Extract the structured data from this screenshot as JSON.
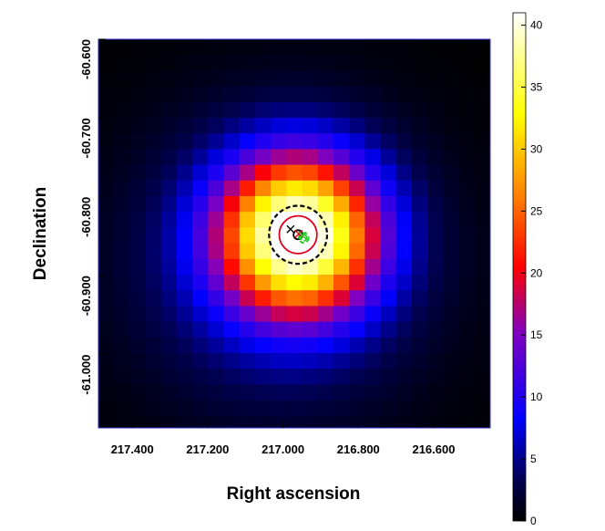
{
  "chart_data": {
    "type": "heatmap",
    "xlabel": "Right ascension",
    "ylabel": "Declination",
    "x_ticks": [
      "217.400",
      "217.200",
      "217.000",
      "216.800",
      "216.600"
    ],
    "x_tick_values": [
      217.4,
      217.2,
      217.0,
      216.8,
      216.6
    ],
    "y_ticks": [
      "-60.600",
      "-60.700",
      "-60.800",
      "-60.900",
      "-61.000"
    ],
    "y_tick_values": [
      -60.6,
      -60.7,
      -60.8,
      -60.9,
      -61.0
    ],
    "xlim": [
      217.49,
      216.45
    ],
    "ylim": [
      -61.093,
      -60.6
    ],
    "colorbar": {
      "ticks": [
        "0",
        "5",
        "10",
        "15",
        "20",
        "25",
        "30",
        "35",
        "40"
      ],
      "tick_values": [
        0,
        5,
        10,
        15,
        20,
        25,
        30,
        35,
        40
      ],
      "range": [
        0,
        41
      ],
      "colormap": [
        "#000000",
        "#000060",
        "#0000ff",
        "#8000c0",
        "#ff0000",
        "#ff8000",
        "#ffff00",
        "#ffffff"
      ]
    },
    "grid": false,
    "peak": {
      "ra": 216.96,
      "dec": -60.848,
      "value": 39
    },
    "overlays": [
      {
        "shape": "circle",
        "ra": 216.96,
        "dec": -60.848,
        "radius_deg": 0.077,
        "color": "#000000",
        "style": "dashed"
      },
      {
        "shape": "circle",
        "ra": 216.96,
        "dec": -60.848,
        "radius_deg": 0.05,
        "color": "#e00020",
        "style": "solid"
      },
      {
        "shape": "circle",
        "ra": 216.96,
        "dec": -60.848,
        "radius_deg": 0.012,
        "color": "#000000",
        "style": "solid"
      },
      {
        "shape": "circle",
        "ra": 216.945,
        "dec": -60.852,
        "radius_deg": 0.013,
        "color": "#22cc22",
        "style": "dashed"
      },
      {
        "shape": "circle",
        "ra": 216.945,
        "dec": -60.852,
        "radius_deg": 0.008,
        "color": "#22cc22",
        "style": "dashed"
      },
      {
        "shape": "cross",
        "ra": 216.98,
        "dec": -60.841,
        "color": "#000000"
      },
      {
        "shape": "cross",
        "ra": 216.958,
        "dec": -60.847,
        "color": "#e00020"
      },
      {
        "shape": "cross",
        "ra": 216.948,
        "dec": -60.849,
        "color": "#22cc22"
      }
    ],
    "frame_color": "#3333cc"
  }
}
